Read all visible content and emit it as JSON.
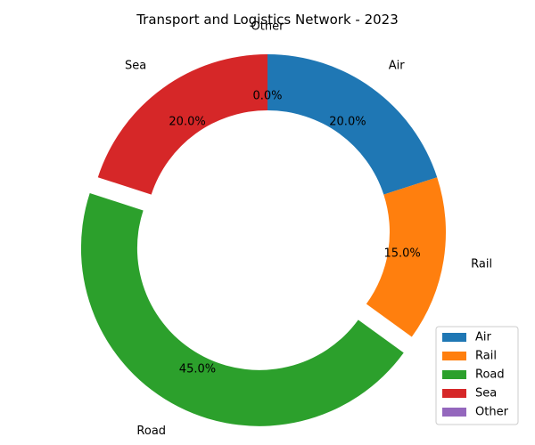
{
  "chart_data": {
    "type": "pie",
    "style": "donut",
    "title": "Transport and Logistics Network - 2023",
    "categories": [
      "Air",
      "Rail",
      "Road",
      "Sea",
      "Other"
    ],
    "values": [
      20.0,
      15.0,
      45.0,
      20.0,
      0.0
    ],
    "percent_labels": [
      "20.0%",
      "15.0%",
      "45.0%",
      "20.0%",
      "0.0%"
    ],
    "exploded": [
      "Road"
    ],
    "colors": [
      "#1f77b4",
      "#ff7f0e",
      "#2ca02c",
      "#d62728",
      "#9467bd"
    ],
    "start_angle_deg": 90,
    "direction": "clockwise",
    "legend": {
      "placement": "lower-right",
      "entries": [
        "Air",
        "Rail",
        "Road",
        "Sea",
        "Other"
      ]
    }
  }
}
